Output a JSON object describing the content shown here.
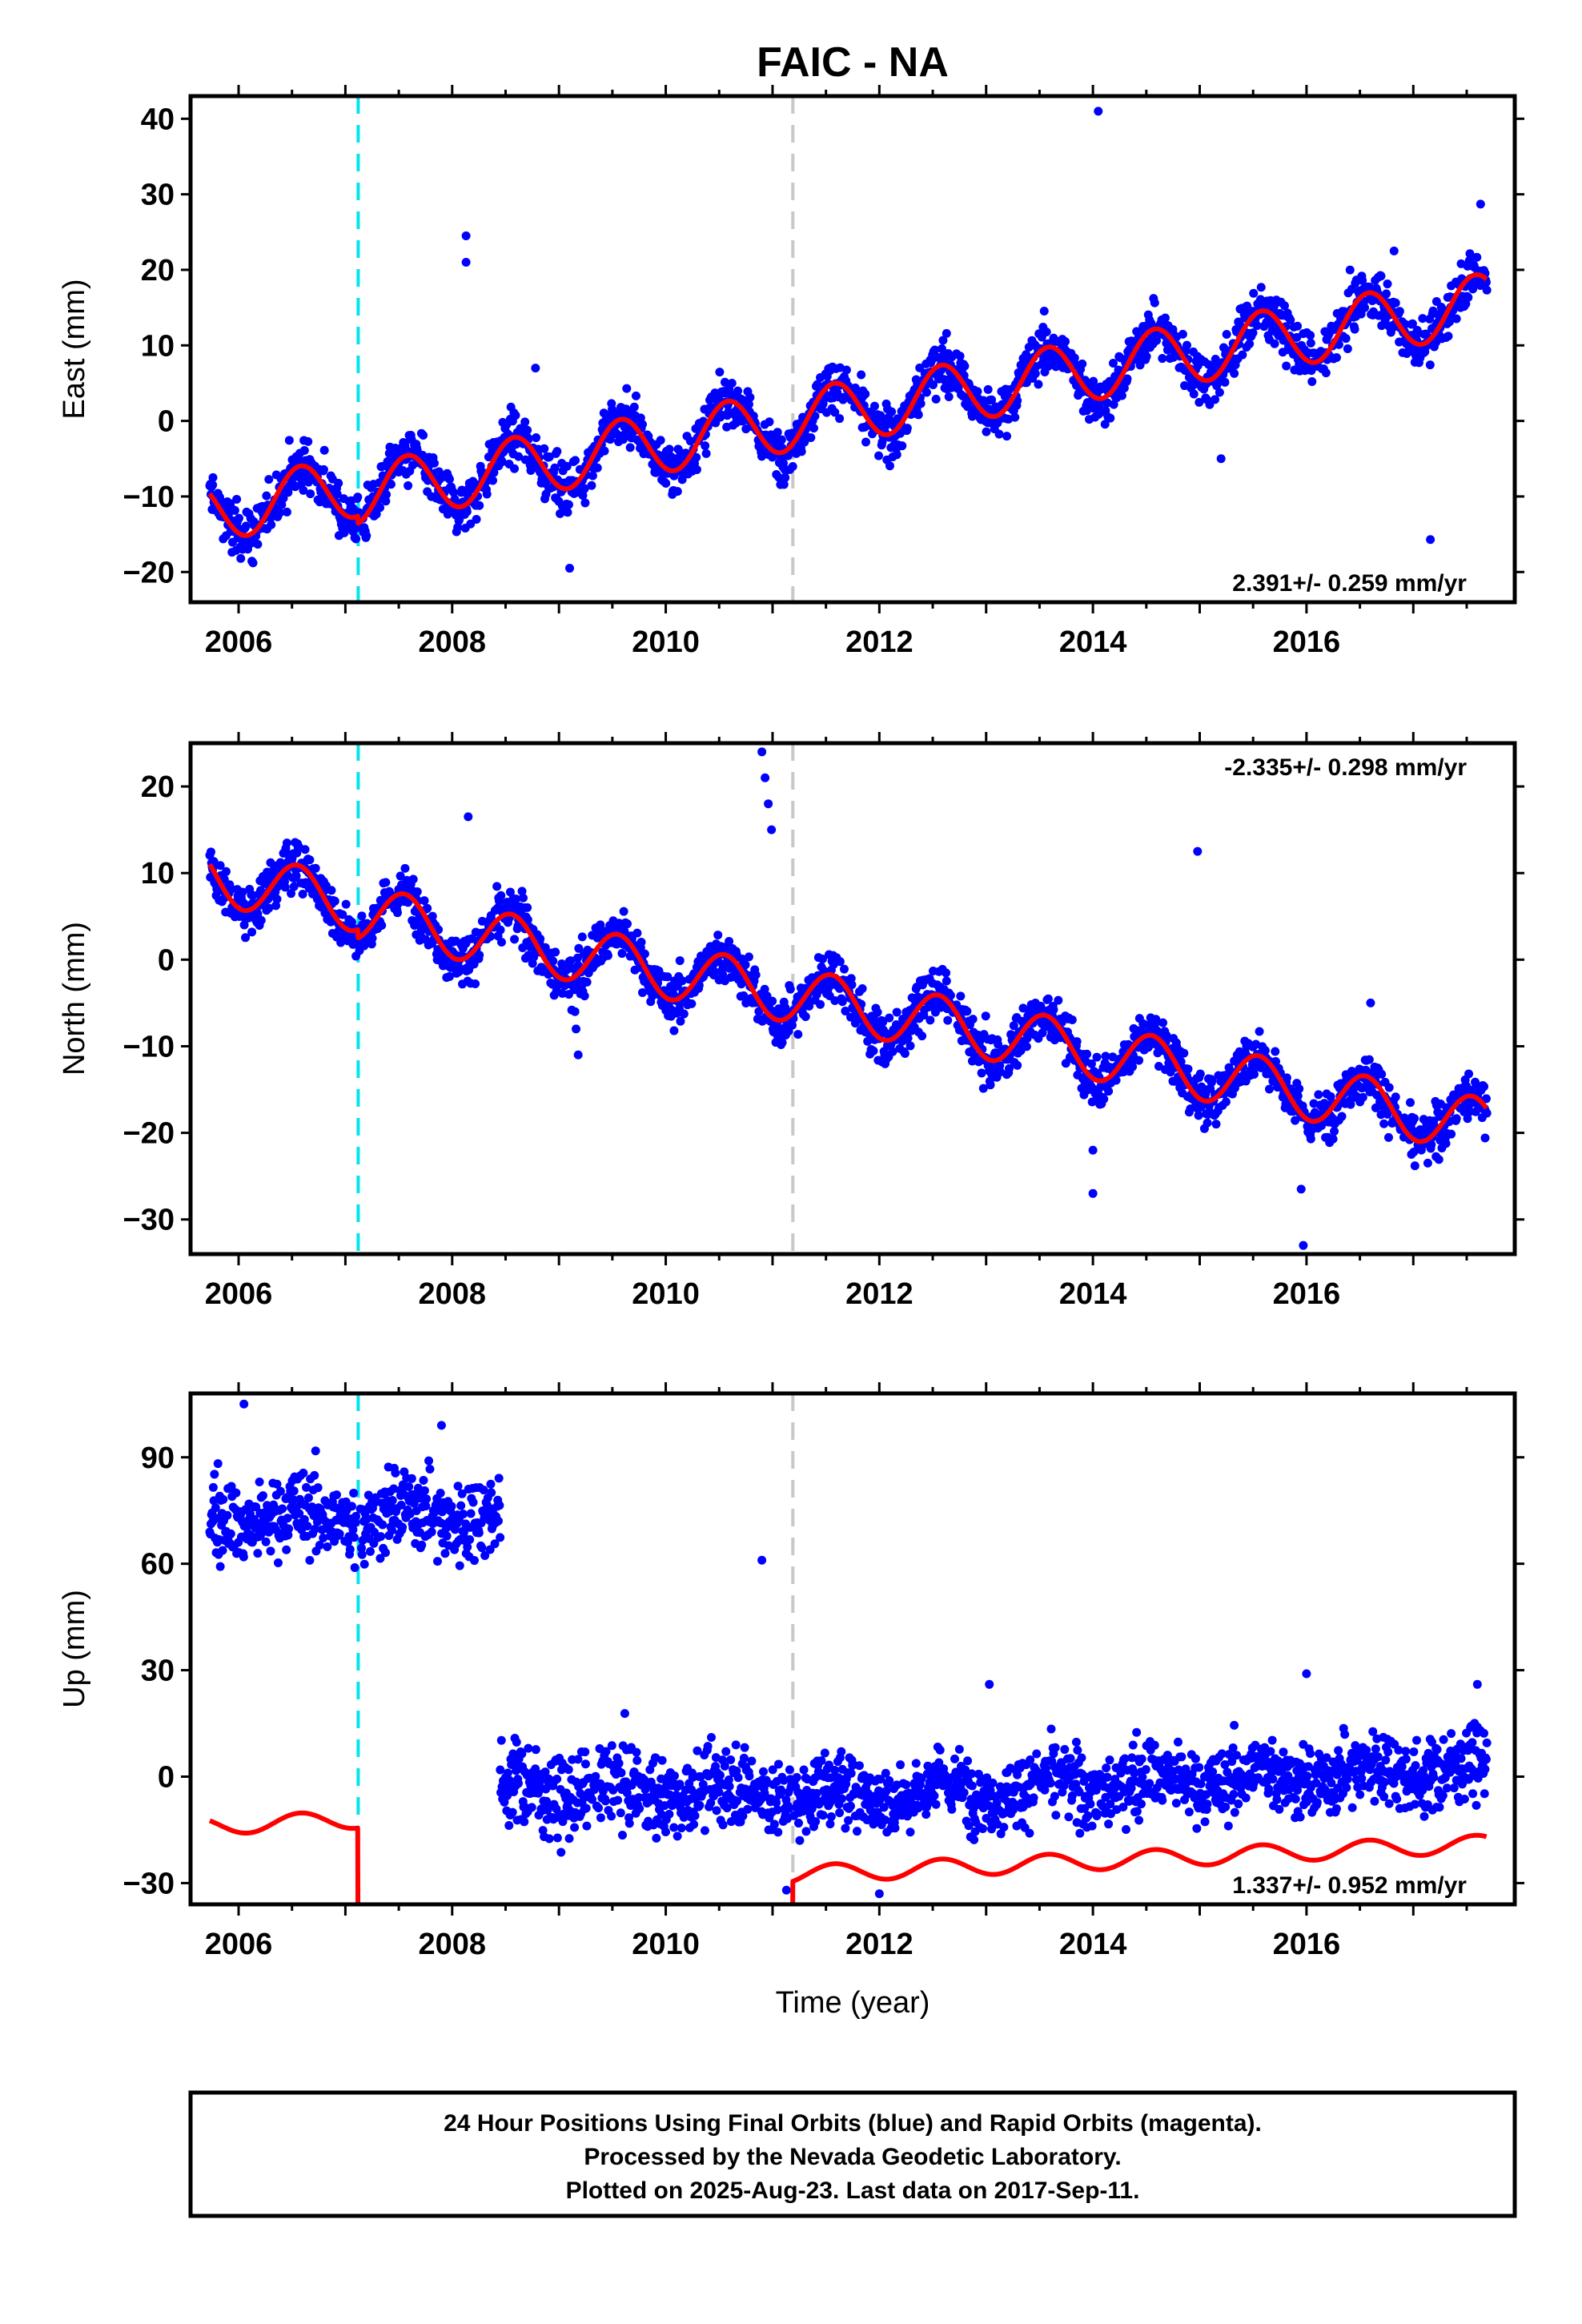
{
  "title": "FAIC - NA",
  "xlabel": "Time (year)",
  "footer": {
    "line1": "24 Hour Positions Using Final Orbits (blue) and Rapid Orbits (magenta).",
    "line2": "Processed by the Nevada Geodetic Laboratory.",
    "line3": "Plotted on 2025-Aug-23. Last data on 2017-Sep-11."
  },
  "colors": {
    "points": "#0000ff",
    "model": "#ff0000",
    "equipment_change": "#00e5ee",
    "earthquake": "#c8c8c8",
    "frame": "#000000"
  },
  "chart_data": [
    {
      "type": "scatter",
      "component": "east",
      "ylabel": "East (mm)",
      "rate_text": "2.391+/- 0.259 mm/yr",
      "rate_position": "bottom-right",
      "xlim": [
        2005.55,
        2017.95
      ],
      "ylim": [
        -24,
        43
      ],
      "x_ticks": [
        2006,
        2008,
        2010,
        2012,
        2014,
        2016
      ],
      "y_ticks": [
        -20,
        -10,
        0,
        10,
        20,
        30,
        40
      ],
      "vlines": [
        {
          "x": 2007.12,
          "kind": "equipment_change"
        },
        {
          "x": 2011.19,
          "kind": "earthquake"
        }
      ],
      "model": {
        "trend_rate": 2.391,
        "base_at_2012": 3,
        "annual_amplitude": 4,
        "annual_peak_phase": 0.58,
        "jumps": [
          {
            "at": 2007.12,
            "delta": -1
          },
          {
            "at": 2011.19,
            "delta": 0
          }
        ]
      },
      "scatter": {
        "noise": 2.3,
        "x_start": 2005.73,
        "x_end": 2017.69
      },
      "outliers": [
        {
          "x": 2008.13,
          "y": 24.5
        },
        {
          "x": 2008.13,
          "y": 21
        },
        {
          "x": 2008.78,
          "y": 7
        },
        {
          "x": 2009.1,
          "y": -19.5
        },
        {
          "x": 2014.05,
          "y": 41
        },
        {
          "x": 2015.2,
          "y": -5
        },
        {
          "x": 2016.82,
          "y": 22.5
        },
        {
          "x": 2017.16,
          "y": -15.7
        },
        {
          "x": 2017.63,
          "y": 28.7
        },
        {
          "x": 2005.76,
          "y": -7.5
        }
      ]
    },
    {
      "type": "scatter",
      "component": "north",
      "ylabel": "North (mm)",
      "rate_text": "-2.335+/- 0.298 mm/yr",
      "rate_position": "top-right",
      "xlim": [
        2005.55,
        2017.95
      ],
      "ylim": [
        -34,
        25
      ],
      "x_ticks": [
        2006,
        2008,
        2010,
        2012,
        2014,
        2016
      ],
      "y_ticks": [
        -30,
        -20,
        -10,
        0,
        10,
        20
      ],
      "vlines": [
        {
          "x": 2007.12,
          "kind": "equipment_change"
        },
        {
          "x": 2011.19,
          "kind": "earthquake"
        }
      ],
      "model": {
        "trend_rate": -2.335,
        "base_at_2012": -5,
        "annual_amplitude": 3.2,
        "annual_peak_phase": 0.55,
        "jumps": [
          {
            "at": 2007.12,
            "delta": -1
          },
          {
            "at": 2011.19,
            "delta": 0
          }
        ]
      },
      "scatter": {
        "noise": 2.0,
        "x_start": 2005.73,
        "x_end": 2017.69
      },
      "outliers": [
        {
          "x": 2010.9,
          "y": 24
        },
        {
          "x": 2010.93,
          "y": 21
        },
        {
          "x": 2010.96,
          "y": 18
        },
        {
          "x": 2010.99,
          "y": 15
        },
        {
          "x": 2009.15,
          "y": -6
        },
        {
          "x": 2009.16,
          "y": -8
        },
        {
          "x": 2009.18,
          "y": -11
        },
        {
          "x": 2014.0,
          "y": -22
        },
        {
          "x": 2014.0,
          "y": -27
        },
        {
          "x": 2015.95,
          "y": -26.5
        },
        {
          "x": 2015.97,
          "y": -33
        },
        {
          "x": 2014.98,
          "y": 12.5
        },
        {
          "x": 2008.15,
          "y": 16.5
        },
        {
          "x": 2016.6,
          "y": -5
        }
      ]
    },
    {
      "type": "scatter",
      "component": "up",
      "ylabel": "Up (mm)",
      "rate_text": "1.337+/- 0.952 mm/yr",
      "rate_position": "bottom-right",
      "xlim": [
        2005.55,
        2017.95
      ],
      "ylim": [
        -36,
        108
      ],
      "x_ticks": [
        2006,
        2008,
        2010,
        2012,
        2014,
        2016
      ],
      "y_ticks": [
        -30,
        0,
        30,
        60,
        90
      ],
      "vlines": [
        {
          "x": 2007.12,
          "kind": "equipment_change"
        },
        {
          "x": 2011.19,
          "kind": "earthquake"
        }
      ],
      "model": {
        "trend_rate": 1.337,
        "base_at_2012": -5.5,
        "annual_amplitude": 2.5,
        "annual_peak_phase": 0.58,
        "jumps": [
          {
            "at": 2007.12,
            "delta": -53
          },
          {
            "at": 2011.19,
            "delta": 32
          }
        ]
      },
      "scatter_segments": [
        {
          "x_start": 2005.73,
          "x_end": 2007.1,
          "center": 73,
          "noise": 8
        },
        {
          "x_start": 2007.14,
          "x_end": 2008.45,
          "center": 74,
          "noise": 8
        },
        {
          "x_start": 2008.45,
          "x_end": 2011.18,
          "center": -4,
          "noise": 8
        },
        {
          "x_start": 2011.2,
          "x_end": 2017.69,
          "trend_from": -6,
          "trend_rate": 1.337,
          "noise": 7
        }
      ],
      "outliers": [
        {
          "x": 2006.05,
          "y": 105
        },
        {
          "x": 2007.9,
          "y": 99
        },
        {
          "x": 2010.9,
          "y": 61
        },
        {
          "x": 2011.13,
          "y": -32
        },
        {
          "x": 2013.03,
          "y": 26
        },
        {
          "x": 2012.0,
          "y": -33
        },
        {
          "x": 2016.0,
          "y": 29
        },
        {
          "x": 2017.6,
          "y": 26
        }
      ]
    }
  ]
}
